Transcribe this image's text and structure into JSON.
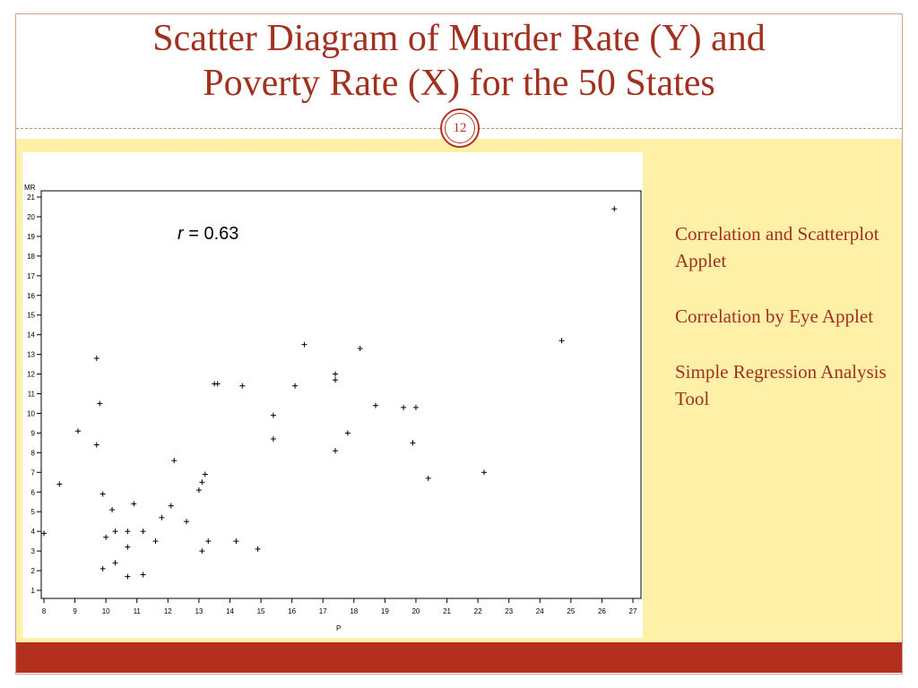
{
  "slide": {
    "title_line1": "Scatter Diagram of Murder Rate (Y) and",
    "title_line2": "Poverty Rate (X) for the 50 States",
    "page_number": "12",
    "links": [
      "Correlation and Scatterplot Applet",
      "Correlation by Eye Applet",
      "Simple Regression Analysis Tool"
    ],
    "correlation_var": "r",
    "correlation_text": " = 0.63",
    "colors": {
      "title": "#a1301e",
      "band": "#fff0a8",
      "footer": "#b3301e"
    }
  },
  "chart_data": {
    "type": "scatter",
    "title": "",
    "xlabel": "P",
    "ylabel": "MR",
    "xlim": [
      8,
      27
    ],
    "ylim": [
      1,
      21
    ],
    "x_ticks": [
      8,
      9,
      10,
      11,
      12,
      13,
      14,
      15,
      16,
      17,
      18,
      19,
      20,
      21,
      22,
      23,
      24,
      25,
      26,
      27
    ],
    "y_ticks": [
      1,
      2,
      3,
      4,
      5,
      6,
      7,
      8,
      9,
      10,
      11,
      12,
      13,
      14,
      15,
      16,
      17,
      18,
      19,
      20,
      21
    ],
    "marker": "+",
    "annotation": "r = 0.63",
    "points": [
      [
        8.0,
        3.9
      ],
      [
        8.5,
        6.4
      ],
      [
        9.1,
        9.1
      ],
      [
        9.7,
        12.8
      ],
      [
        9.7,
        8.4
      ],
      [
        9.8,
        10.5
      ],
      [
        9.9,
        5.9
      ],
      [
        9.9,
        2.1
      ],
      [
        10.0,
        3.7
      ],
      [
        10.2,
        5.1
      ],
      [
        10.3,
        4.0
      ],
      [
        10.3,
        2.4
      ],
      [
        10.7,
        4.0
      ],
      [
        10.7,
        3.2
      ],
      [
        10.7,
        1.7
      ],
      [
        10.9,
        5.4
      ],
      [
        11.2,
        4.0
      ],
      [
        11.2,
        1.8
      ],
      [
        11.6,
        3.5
      ],
      [
        11.8,
        4.7
      ],
      [
        12.1,
        5.3
      ],
      [
        12.2,
        7.6
      ],
      [
        12.6,
        4.5
      ],
      [
        13.0,
        6.1
      ],
      [
        13.1,
        6.5
      ],
      [
        13.1,
        3.0
      ],
      [
        13.2,
        6.9
      ],
      [
        13.3,
        3.5
      ],
      [
        13.5,
        11.5
      ],
      [
        13.6,
        11.5
      ],
      [
        14.2,
        3.5
      ],
      [
        14.4,
        11.4
      ],
      [
        14.9,
        3.1
      ],
      [
        15.4,
        9.9
      ],
      [
        15.4,
        8.7
      ],
      [
        16.1,
        11.4
      ],
      [
        16.4,
        13.5
      ],
      [
        17.4,
        12.0
      ],
      [
        17.4,
        11.7
      ],
      [
        17.4,
        8.1
      ],
      [
        17.8,
        9.0
      ],
      [
        18.2,
        13.3
      ],
      [
        18.7,
        10.4
      ],
      [
        19.6,
        10.3
      ],
      [
        19.9,
        8.5
      ],
      [
        20.0,
        10.3
      ],
      [
        20.4,
        6.7
      ],
      [
        22.2,
        7.0
      ],
      [
        24.7,
        13.7
      ],
      [
        26.4,
        20.4
      ]
    ]
  }
}
